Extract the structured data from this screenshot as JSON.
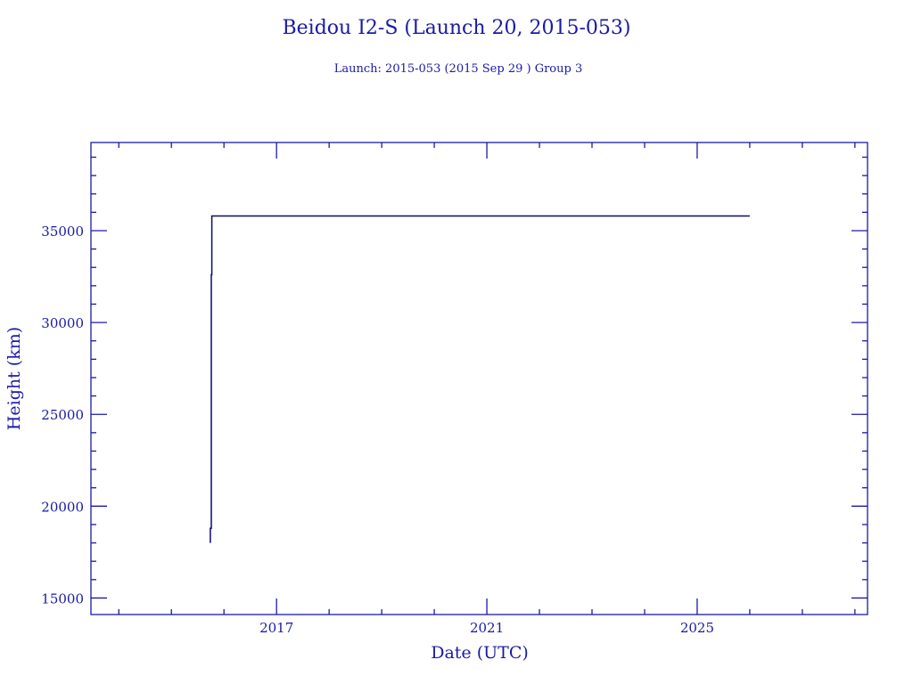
{
  "chart_data": {
    "type": "line",
    "title": "Beidou I2-S (Launch 20, 2015-053)",
    "subtitle": "Launch: 2015-053  (2015 Sep 29 )  Group 3",
    "xlabel": "Date (UTC)",
    "ylabel": "Height (km)",
    "xlim": [
      2013.47,
      2028.24
    ],
    "ylim": [
      14100,
      39800
    ],
    "x_ticks": [
      2017,
      2021,
      2025
    ],
    "x_tick_labels": [
      "2017",
      "2021",
      "2025"
    ],
    "x_minor_step": 1,
    "y_ticks": [
      15000,
      20000,
      25000,
      30000,
      35000
    ],
    "y_tick_labels": [
      "15000",
      "20000",
      "25000",
      "30000",
      "35000"
    ],
    "y_minor_step": 1000,
    "grid": false,
    "series": [
      {
        "x": [
          2015.74,
          2015.74,
          2015.76,
          2015.76,
          2015.77,
          2015.77,
          2015.8,
          2026.0
        ],
        "y": [
          18000,
          18800,
          18800,
          32600,
          32600,
          35800,
          35800,
          35800
        ]
      }
    ],
    "colors": {
      "axis": "#1a1aa6",
      "line": "#0a0a70"
    }
  }
}
